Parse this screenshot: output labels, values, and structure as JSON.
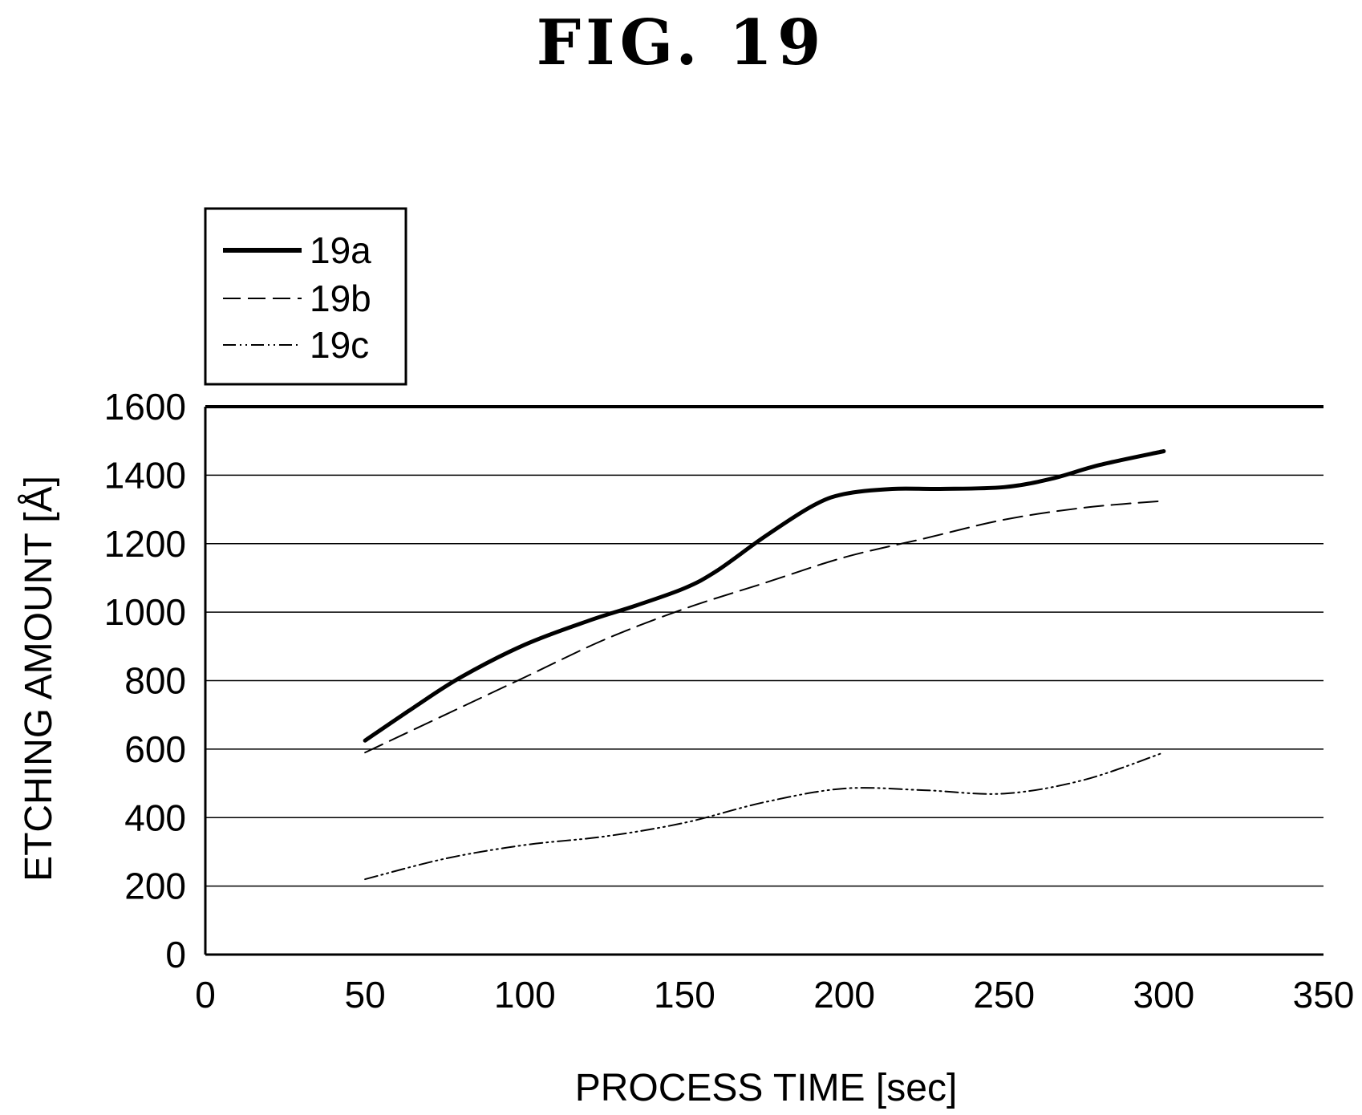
{
  "figure_title": "FIG. 19",
  "chart_data": {
    "type": "line",
    "title": "FIG. 19",
    "xlabel": "PROCESS TIME [sec]",
    "ylabel": "ETCHING AMOUNT [Å]",
    "xlim": [
      0,
      350
    ],
    "ylim": [
      0,
      1600
    ],
    "x_ticks": [
      "0",
      "50",
      "100",
      "150",
      "200",
      "250",
      "300",
      "350"
    ],
    "y_ticks": [
      "0",
      "200",
      "400",
      "600",
      "800",
      "1000",
      "1200",
      "1400",
      "1600"
    ],
    "grid": "horizontal",
    "legend_position": "top-left, above plot",
    "series": [
      {
        "name": "19a",
        "style": "solid-thick",
        "x": [
          50,
          65,
          80,
          100,
          120,
          135,
          150,
          160,
          175,
          190,
          200,
          215,
          230,
          250,
          265,
          280,
          300
        ],
        "y": [
          625,
          720,
          810,
          905,
          975,
          1020,
          1070,
          1120,
          1220,
          1310,
          1345,
          1360,
          1360,
          1365,
          1390,
          1430,
          1470
        ]
      },
      {
        "name": "19b",
        "style": "dashed",
        "x": [
          50,
          75,
          100,
          125,
          150,
          175,
          200,
          225,
          250,
          275,
          300
        ],
        "y": [
          590,
          700,
          810,
          920,
          1010,
          1085,
          1160,
          1215,
          1270,
          1305,
          1325
        ]
      },
      {
        "name": "19c",
        "style": "dash-dot-dot",
        "x": [
          50,
          75,
          100,
          125,
          150,
          175,
          200,
          225,
          250,
          275,
          300
        ],
        "y": [
          220,
          280,
          320,
          345,
          385,
          445,
          485,
          480,
          470,
          510,
          590
        ]
      }
    ],
    "colors": {
      "line": "#000000",
      "grid": "#000000",
      "background": "#ffffff"
    }
  }
}
